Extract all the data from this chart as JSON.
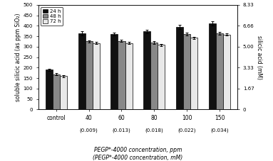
{
  "groups": [
    "control",
    "40",
    "60",
    "80",
    "100",
    "150"
  ],
  "bottom_labels": [
    "",
    "(0.009)",
    "(0.013)",
    "(0.018)",
    "(0.022)",
    "(0.034)"
  ],
  "bar_24h": [
    190,
    365,
    360,
    373,
    393,
    410
  ],
  "bar_48h": [
    168,
    325,
    328,
    320,
    360,
    363
  ],
  "bar_72h": [
    160,
    318,
    318,
    308,
    342,
    358
  ],
  "err_24h": [
    5,
    10,
    8,
    8,
    10,
    10
  ],
  "err_48h": [
    5,
    6,
    6,
    6,
    6,
    7
  ],
  "err_72h": [
    5,
    6,
    6,
    5,
    5,
    6
  ],
  "bar_colors": [
    "#111111",
    "#888888",
    "#e8e8e8"
  ],
  "bar_edgecolor": "#000000",
  "ylim": [
    0,
    500
  ],
  "yticks_left": [
    0,
    50,
    100,
    150,
    200,
    250,
    300,
    350,
    400,
    450,
    500
  ],
  "yticks_right_positions": [
    0,
    100,
    200,
    300,
    400,
    500
  ],
  "yticks_right_labels": [
    "0",
    "1.67",
    "3.33",
    "5.00",
    "6.66",
    "8.33"
  ],
  "ylabel_left": "soluble silicic acid (as ppm SiO₂)",
  "ylabel_right": "silicic acid (mM)",
  "xlabel_line1": "PEGP*-4000 concentration, ppm",
  "xlabel_line2": "(PEGP*-4000 concentration, mM)",
  "legend_labels": [
    "24 h",
    "48 h",
    "72 h"
  ],
  "figsize": [
    3.83,
    2.27
  ],
  "dpi": 100,
  "bar_width": 0.22,
  "background_color": "#ffffff"
}
